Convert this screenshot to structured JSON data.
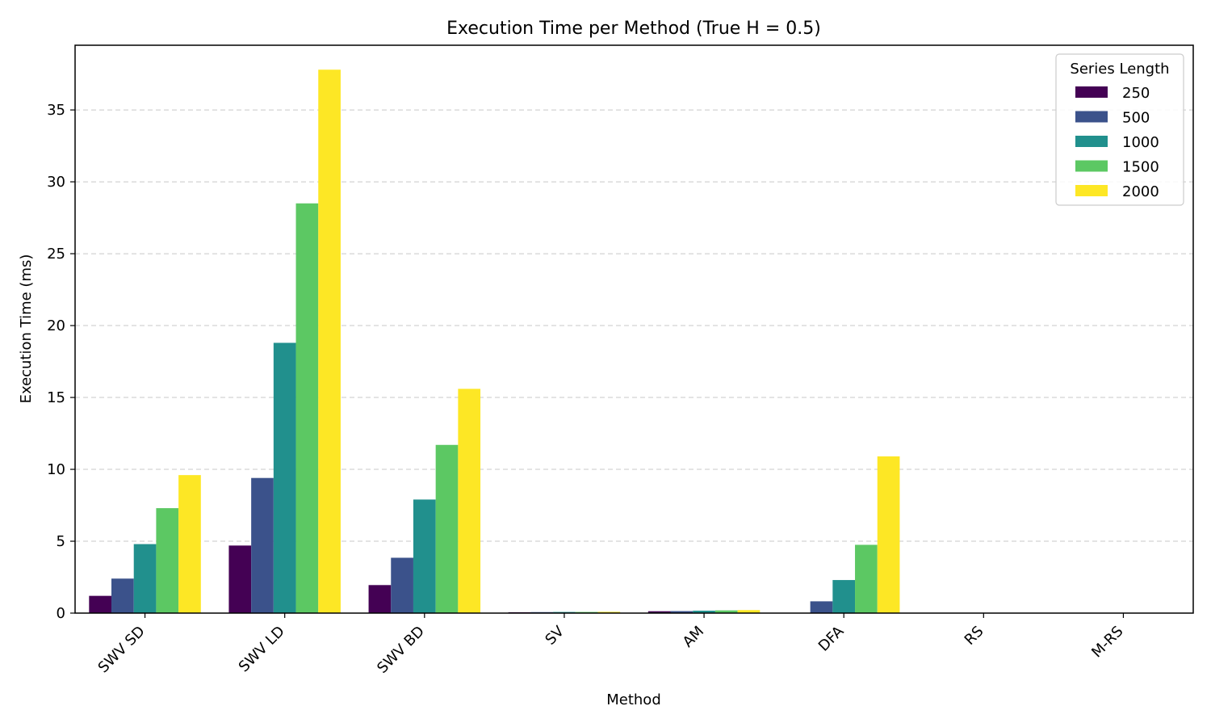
{
  "chart_data": {
    "type": "bar",
    "title": "Execution Time per Method (True H = 0.5)",
    "xlabel": "Method",
    "ylabel": "Execution Time (ms)",
    "categories": [
      "SWV SD",
      "SWV LD",
      "SWV BD",
      "SV",
      "AM",
      "DFA",
      "RS",
      "M-RS"
    ],
    "ylim": [
      0,
      39.5
    ],
    "yticks": [
      0,
      5,
      10,
      15,
      20,
      25,
      30,
      35
    ],
    "ytick_labels": [
      "0",
      "5",
      "10",
      "15",
      "20",
      "25",
      "30",
      "35"
    ],
    "grid": "y-dashed",
    "legend": {
      "title": "Series Length",
      "placement": "top-right"
    },
    "series": [
      {
        "name": "250",
        "color": "#440154",
        "values": [
          1.2,
          4.7,
          1.95,
          0.06,
          0.13,
          0.0,
          0.0,
          0.0
        ]
      },
      {
        "name": "500",
        "color": "#3b528b",
        "values": [
          2.4,
          9.4,
          3.85,
          0.07,
          0.14,
          0.82,
          0.0,
          0.0
        ]
      },
      {
        "name": "1000",
        "color": "#21908d",
        "values": [
          4.8,
          18.8,
          7.9,
          0.08,
          0.17,
          2.3,
          0.0,
          0.0
        ]
      },
      {
        "name": "1500",
        "color": "#5cc863",
        "values": [
          7.3,
          28.5,
          11.7,
          0.08,
          0.19,
          4.75,
          0.0,
          0.0
        ]
      },
      {
        "name": "2000",
        "color": "#fde725",
        "values": [
          9.6,
          37.8,
          15.6,
          0.09,
          0.21,
          10.9,
          0.0,
          0.0
        ]
      }
    ]
  }
}
